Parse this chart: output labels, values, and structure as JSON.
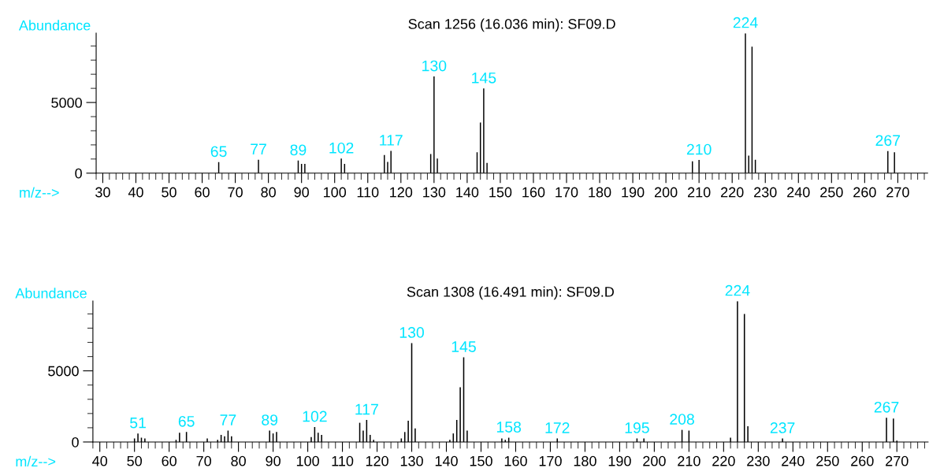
{
  "chart_data": [
    {
      "type": "bar",
      "title": "Scan 1256 (16.036 min): SF09.D",
      "xlabel": "m/z-->",
      "ylabel": "Abundance",
      "color": "#000000",
      "grid": false,
      "x": [
        65,
        77,
        89,
        90,
        91,
        102,
        103,
        115,
        116,
        117,
        129,
        130,
        131,
        143,
        144,
        145,
        146,
        208,
        210,
        224,
        225,
        226,
        227,
        267,
        269
      ],
      "values": [
        780,
        950,
        890,
        650,
        650,
        1030,
        650,
        1290,
        800,
        1580,
        1350,
        6840,
        1030,
        1480,
        3590,
        5990,
        720,
        840,
        930,
        9900,
        1240,
        8950,
        950,
        1560,
        1480
      ],
      "xlim": [
        28,
        279
      ],
      "ylim": [
        0,
        9900
      ],
      "xticks": [
        {
          "value": 28,
          "label": null
        },
        30,
        {
          "value": 32,
          "label": null
        },
        {
          "value": 34,
          "label": null
        },
        {
          "value": 36,
          "label": null
        },
        {
          "value": 38,
          "label": null
        },
        40,
        {
          "value": 42,
          "label": null
        },
        {
          "value": 44,
          "label": null
        },
        {
          "value": 46,
          "label": null
        },
        {
          "value": 48,
          "label": null
        },
        50,
        {
          "value": 52,
          "label": null
        },
        {
          "value": 54,
          "label": null
        },
        {
          "value": 56,
          "label": null
        },
        {
          "value": 58,
          "label": null
        },
        60,
        {
          "value": 62,
          "label": null
        },
        {
          "value": 64,
          "label": null
        },
        {
          "value": 66,
          "label": null
        },
        {
          "value": 68,
          "label": null
        },
        70,
        {
          "value": 72,
          "label": null
        },
        {
          "value": 74,
          "label": null
        },
        {
          "value": 76,
          "label": null
        },
        {
          "value": 78,
          "label": null
        },
        80,
        {
          "value": 82,
          "label": null
        },
        {
          "value": 84,
          "label": null
        },
        {
          "value": 86,
          "label": null
        },
        {
          "value": 88,
          "label": null
        },
        90,
        {
          "value": 92,
          "label": null
        },
        {
          "value": 94,
          "label": null
        },
        {
          "value": 96,
          "label": null
        },
        {
          "value": 98,
          "label": null
        },
        100,
        {
          "value": 102,
          "label": null
        },
        {
          "value": 104,
          "label": null
        },
        {
          "value": 106,
          "label": null
        },
        {
          "value": 108,
          "label": null
        },
        110,
        {
          "value": 112,
          "label": null
        },
        {
          "value": 114,
          "label": null
        },
        {
          "value": 116,
          "label": null
        },
        {
          "value": 118,
          "label": null
        },
        120,
        {
          "value": 122,
          "label": null
        },
        {
          "value": 124,
          "label": null
        },
        {
          "value": 126,
          "label": null
        },
        {
          "value": 128,
          "label": null
        },
        130,
        {
          "value": 132,
          "label": null
        },
        {
          "value": 134,
          "label": null
        },
        {
          "value": 136,
          "label": null
        },
        {
          "value": 138,
          "label": null
        },
        140,
        {
          "value": 142,
          "label": null
        },
        {
          "value": 144,
          "label": null
        },
        {
          "value": 146,
          "label": null
        },
        {
          "value": 148,
          "label": null
        },
        150,
        {
          "value": 152,
          "label": null
        },
        {
          "value": 154,
          "label": null
        },
        {
          "value": 156,
          "label": null
        },
        {
          "value": 158,
          "label": null
        },
        160,
        {
          "value": 162,
          "label": null
        },
        {
          "value": 164,
          "label": null
        },
        {
          "value": 166,
          "label": null
        },
        {
          "value": 168,
          "label": null
        },
        170,
        {
          "value": 172,
          "label": null
        },
        {
          "value": 174,
          "label": null
        },
        {
          "value": 176,
          "label": null
        },
        {
          "value": 178,
          "label": null
        },
        180,
        {
          "value": 182,
          "label": null
        },
        {
          "value": 184,
          "label": null
        },
        {
          "value": 186,
          "label": null
        },
        {
          "value": 188,
          "label": null
        },
        190,
        {
          "value": 192,
          "label": null
        },
        {
          "value": 194,
          "label": null
        },
        {
          "value": 196,
          "label": null
        },
        {
          "value": 198,
          "label": null
        },
        200,
        {
          "value": 202,
          "label": null
        },
        {
          "value": 204,
          "label": null
        },
        {
          "value": 206,
          "label": null
        },
        {
          "value": 208,
          "label": null
        },
        210,
        {
          "value": 212,
          "label": null
        },
        {
          "value": 214,
          "label": null
        },
        {
          "value": 216,
          "label": null
        },
        {
          "value": 218,
          "label": null
        },
        220,
        {
          "value": 222,
          "label": null
        },
        {
          "value": 224,
          "label": null
        },
        {
          "value": 226,
          "label": null
        },
        {
          "value": 228,
          "label": null
        },
        230,
        {
          "value": 232,
          "label": null
        },
        {
          "value": 234,
          "label": null
        },
        {
          "value": 236,
          "label": null
        },
        {
          "value": 238,
          "label": null
        },
        240,
        {
          "value": 242,
          "label": null
        },
        {
          "value": 244,
          "label": null
        },
        {
          "value": 246,
          "label": null
        },
        {
          "value": 248,
          "label": null
        },
        250,
        {
          "value": 252,
          "label": null
        },
        {
          "value": 254,
          "label": null
        },
        {
          "value": 256,
          "label": null
        },
        {
          "value": 258,
          "label": null
        },
        260,
        {
          "value": 262,
          "label": null
        },
        {
          "value": 264,
          "label": null
        },
        {
          "value": 266,
          "label": null
        },
        {
          "value": 268,
          "label": null
        },
        270,
        {
          "value": 272,
          "label": null
        },
        {
          "value": 274,
          "label": null
        },
        {
          "value": 276,
          "label": null
        },
        {
          "value": 278,
          "label": null
        }
      ],
      "yticks": [
        0,
        {
          "value": 1000,
          "label": null
        },
        {
          "value": 2000,
          "label": null
        },
        {
          "value": 3000,
          "label": null
        },
        {
          "value": 4000,
          "label": null
        },
        5000,
        {
          "value": 6000,
          "label": null
        },
        {
          "value": 7000,
          "label": null
        },
        {
          "value": 8000,
          "label": null
        },
        {
          "value": 9000,
          "label": null
        }
      ],
      "annotations": [
        {
          "text": "65",
          "x": 65,
          "y": 780
        },
        {
          "text": "77",
          "x": 77,
          "y": 950
        },
        {
          "text": "89",
          "x": 89,
          "y": 890
        },
        {
          "text": "102",
          "x": 102,
          "y": 1030
        },
        {
          "text": "117",
          "x": 117,
          "y": 1580
        },
        {
          "text": "130",
          "x": 130,
          "y": 6840
        },
        {
          "text": "145",
          "x": 145,
          "y": 5990
        },
        {
          "text": "210",
          "x": 210,
          "y": 930
        },
        {
          "text": "224",
          "x": 224,
          "y": 9900
        },
        {
          "text": "267",
          "x": 267,
          "y": 1560
        }
      ]
    },
    {
      "type": "bar",
      "title": "Scan 1308 (16.491 min): SF09.D",
      "xlabel": "m/z-->",
      "ylabel": "Abundance",
      "color": "#000000",
      "grid": false,
      "x": [
        50,
        51,
        52,
        53,
        62,
        63,
        65,
        71,
        74,
        75,
        76,
        77,
        78,
        89,
        90,
        91,
        101,
        102,
        103,
        104,
        115,
        116,
        117,
        118,
        119,
        127,
        128,
        129,
        130,
        131,
        141,
        142,
        143,
        144,
        145,
        146,
        156,
        157,
        158,
        172,
        195,
        197,
        208,
        210,
        222,
        224,
        226,
        227,
        237,
        267,
        269,
        270
      ],
      "values": [
        250,
        600,
        300,
        250,
        150,
        650,
        700,
        250,
        150,
        500,
        400,
        800,
        400,
        800,
        600,
        700,
        350,
        1050,
        650,
        500,
        1350,
        800,
        1550,
        500,
        150,
        250,
        700,
        1500,
        6950,
        950,
        150,
        600,
        1550,
        3850,
        5950,
        800,
        250,
        150,
        300,
        250,
        250,
        250,
        850,
        800,
        300,
        9900,
        9000,
        1100,
        250,
        1700,
        1650,
        100
      ],
      "xlim": [
        38,
        279
      ],
      "ylim": [
        0,
        9900
      ],
      "xticks": [
        {
          "value": 38,
          "label": null
        },
        40,
        {
          "value": 42,
          "label": null
        },
        {
          "value": 44,
          "label": null
        },
        {
          "value": 46,
          "label": null
        },
        {
          "value": 48,
          "label": null
        },
        50,
        {
          "value": 52,
          "label": null
        },
        {
          "value": 54,
          "label": null
        },
        {
          "value": 56,
          "label": null
        },
        {
          "value": 58,
          "label": null
        },
        60,
        {
          "value": 62,
          "label": null
        },
        {
          "value": 64,
          "label": null
        },
        {
          "value": 66,
          "label": null
        },
        {
          "value": 68,
          "label": null
        },
        70,
        {
          "value": 72,
          "label": null
        },
        {
          "value": 74,
          "label": null
        },
        {
          "value": 76,
          "label": null
        },
        {
          "value": 78,
          "label": null
        },
        80,
        {
          "value": 82,
          "label": null
        },
        {
          "value": 84,
          "label": null
        },
        {
          "value": 86,
          "label": null
        },
        {
          "value": 88,
          "label": null
        },
        90,
        {
          "value": 92,
          "label": null
        },
        {
          "value": 94,
          "label": null
        },
        {
          "value": 96,
          "label": null
        },
        {
          "value": 98,
          "label": null
        },
        100,
        {
          "value": 102,
          "label": null
        },
        {
          "value": 104,
          "label": null
        },
        {
          "value": 106,
          "label": null
        },
        {
          "value": 108,
          "label": null
        },
        110,
        {
          "value": 112,
          "label": null
        },
        {
          "value": 114,
          "label": null
        },
        {
          "value": 116,
          "label": null
        },
        {
          "value": 118,
          "label": null
        },
        120,
        {
          "value": 122,
          "label": null
        },
        {
          "value": 124,
          "label": null
        },
        {
          "value": 126,
          "label": null
        },
        {
          "value": 128,
          "label": null
        },
        130,
        {
          "value": 132,
          "label": null
        },
        {
          "value": 134,
          "label": null
        },
        {
          "value": 136,
          "label": null
        },
        {
          "value": 138,
          "label": null
        },
        140,
        {
          "value": 142,
          "label": null
        },
        {
          "value": 144,
          "label": null
        },
        {
          "value": 146,
          "label": null
        },
        {
          "value": 148,
          "label": null
        },
        150,
        {
          "value": 152,
          "label": null
        },
        {
          "value": 154,
          "label": null
        },
        {
          "value": 156,
          "label": null
        },
        {
          "value": 158,
          "label": null
        },
        160,
        {
          "value": 162,
          "label": null
        },
        {
          "value": 164,
          "label": null
        },
        {
          "value": 166,
          "label": null
        },
        {
          "value": 168,
          "label": null
        },
        170,
        {
          "value": 172,
          "label": null
        },
        {
          "value": 174,
          "label": null
        },
        {
          "value": 176,
          "label": null
        },
        {
          "value": 178,
          "label": null
        },
        180,
        {
          "value": 182,
          "label": null
        },
        {
          "value": 184,
          "label": null
        },
        {
          "value": 186,
          "label": null
        },
        {
          "value": 188,
          "label": null
        },
        190,
        {
          "value": 192,
          "label": null
        },
        {
          "value": 194,
          "label": null
        },
        {
          "value": 196,
          "label": null
        },
        {
          "value": 198,
          "label": null
        },
        200,
        {
          "value": 202,
          "label": null
        },
        {
          "value": 204,
          "label": null
        },
        {
          "value": 206,
          "label": null
        },
        {
          "value": 208,
          "label": null
        },
        210,
        {
          "value": 212,
          "label": null
        },
        {
          "value": 214,
          "label": null
        },
        {
          "value": 216,
          "label": null
        },
        {
          "value": 218,
          "label": null
        },
        220,
        {
          "value": 222,
          "label": null
        },
        {
          "value": 224,
          "label": null
        },
        {
          "value": 226,
          "label": null
        },
        {
          "value": 228,
          "label": null
        },
        230,
        {
          "value": 232,
          "label": null
        },
        {
          "value": 234,
          "label": null
        },
        {
          "value": 236,
          "label": null
        },
        {
          "value": 238,
          "label": null
        },
        240,
        {
          "value": 242,
          "label": null
        },
        {
          "value": 244,
          "label": null
        },
        {
          "value": 246,
          "label": null
        },
        {
          "value": 248,
          "label": null
        },
        250,
        {
          "value": 252,
          "label": null
        },
        {
          "value": 254,
          "label": null
        },
        {
          "value": 256,
          "label": null
        },
        {
          "value": 258,
          "label": null
        },
        260,
        {
          "value": 262,
          "label": null
        },
        {
          "value": 264,
          "label": null
        },
        {
          "value": 266,
          "label": null
        },
        {
          "value": 268,
          "label": null
        },
        270,
        {
          "value": 272,
          "label": null
        },
        {
          "value": 274,
          "label": null
        },
        {
          "value": 276,
          "label": null
        },
        {
          "value": 278,
          "label": null
        }
      ],
      "yticks": [
        0,
        {
          "value": 1000,
          "label": null
        },
        {
          "value": 2000,
          "label": null
        },
        {
          "value": 3000,
          "label": null
        },
        {
          "value": 4000,
          "label": null
        },
        5000,
        {
          "value": 6000,
          "label": null
        },
        {
          "value": 7000,
          "label": null
        },
        {
          "value": 8000,
          "label": null
        },
        {
          "value": 9000,
          "label": null
        }
      ],
      "annotations": [
        {
          "text": "51",
          "x": 51,
          "y": 600
        },
        {
          "text": "65",
          "x": 65,
          "y": 700
        },
        {
          "text": "77",
          "x": 77,
          "y": 800
        },
        {
          "text": "89",
          "x": 89,
          "y": 800
        },
        {
          "text": "102",
          "x": 102,
          "y": 1050
        },
        {
          "text": "117",
          "x": 117,
          "y": 1550
        },
        {
          "text": "130",
          "x": 130,
          "y": 6950
        },
        {
          "text": "145",
          "x": 145,
          "y": 5950
        },
        {
          "text": "158",
          "x": 158,
          "y": 300
        },
        {
          "text": "172",
          "x": 172,
          "y": 250
        },
        {
          "text": "195",
          "x": 195,
          "y": 250
        },
        {
          "text": "208",
          "x": 208,
          "y": 850
        },
        {
          "text": "224",
          "x": 224,
          "y": 9900
        },
        {
          "text": "237",
          "x": 237,
          "y": 250
        },
        {
          "text": "267",
          "x": 267,
          "y": 1700
        }
      ]
    }
  ]
}
